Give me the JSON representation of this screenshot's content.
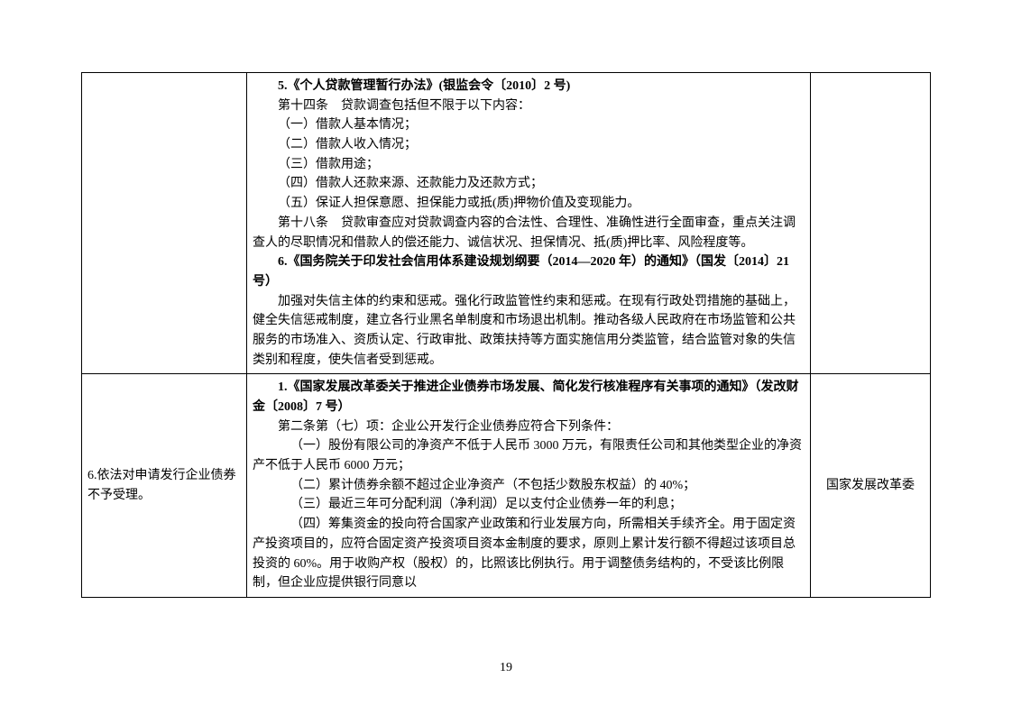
{
  "page_number": "19",
  "table": {
    "rows": [
      {
        "left": "",
        "right": "",
        "mid_paragraphs": [
          {
            "cls": "indent-1 bold",
            "text": "5.《个人贷款管理暂行办法》(银监会令〔2010〕2 号)"
          },
          {
            "cls": "indent-1",
            "text": "第十四条　贷款调查包括但不限于以下内容："
          },
          {
            "cls": "indent-1",
            "text": "（一）借款人基本情况；"
          },
          {
            "cls": "indent-1",
            "text": "（二）借款人收入情况；"
          },
          {
            "cls": "indent-1",
            "text": "（三）借款用途；"
          },
          {
            "cls": "indent-1",
            "text": "（四）借款人还款来源、还款能力及还款方式；"
          },
          {
            "cls": "indent-1",
            "text": "（五）保证人担保意愿、担保能力或抵(质)押物价值及变现能力。"
          },
          {
            "cls": "indent-1",
            "text": "第十八条　贷款审查应对贷款调查内容的合法性、合理性、准确性进行全面审查，重点关注调查人的尽职情况和借款人的偿还能力、诚信状况、担保情况、抵(质)押比率、风险程度等。"
          },
          {
            "cls": "indent-1 bold",
            "text": "6.《国务院关于印发社会信用体系建设规划纲要（2014—2020 年）的通知》（国发〔2014〕21 号）"
          },
          {
            "cls": "indent-1",
            "text": "加强对失信主体的约束和惩戒。强化行政监管性约束和惩戒。在现有行政处罚措施的基础上，健全失信惩戒制度，建立各行业黑名单制度和市场退出机制。推动各级人民政府在市场监管和公共服务的市场准入、资质认定、行政审批、政策扶持等方面实施信用分类监管，结合监管对象的失信类别和程度，使失信者受到惩戒。"
          }
        ]
      },
      {
        "left": "6.依法对申请发行企业债券不予受理。",
        "right": "国家发展改革委",
        "mid_paragraphs": [
          {
            "cls": "indent-1 bold",
            "text": "1.《国家发展改革委关于推进企业债券市场发展、简化发行核准程序有关事项的通知》（发改财金〔2008〕7 号）"
          },
          {
            "cls": "indent-1",
            "text": "第二条第（七）项：企业公开发行企业债券应符合下列条件："
          },
          {
            "cls": "indent-2",
            "text": "（一）股份有限公司的净资产不低于人民币 3000 万元，有限责任公司和其他类型企业的净资产不低于人民币 6000 万元；"
          },
          {
            "cls": "indent-2",
            "text": "（二）累计债券余额不超过企业净资产（不包括少数股东权益）的 40%；"
          },
          {
            "cls": "indent-2",
            "text": "（三）最近三年可分配利润（净利润）足以支付企业债券一年的利息；"
          },
          {
            "cls": "indent-2",
            "text": "（四）筹集资金的投向符合国家产业政策和行业发展方向，所需相关手续齐全。用于固定资产投资项目的，应符合固定资产投资项目资本金制度的要求，原则上累计发行额不得超过该项目总投资的 60%。用于收购产权（股权）的，比照该比例执行。用于调整债务结构的，不受该比例限制，但企业应提供银行同意以"
          }
        ]
      }
    ]
  }
}
